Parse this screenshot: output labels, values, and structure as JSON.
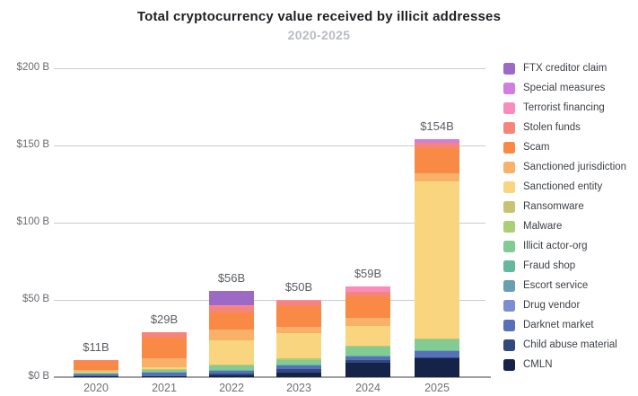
{
  "header": {
    "title": "Total cryptocurrency value received by illicit addresses",
    "subtitle": "2020-2025"
  },
  "chart_data": {
    "type": "bar",
    "stacked": true,
    "title": "Total cryptocurrency value received by illicit addresses",
    "subtitle": "2020-2025",
    "xlabel": "",
    "ylabel": "",
    "ylim": [
      0,
      200
    ],
    "grid": true,
    "legend_position": "right",
    "categories": [
      "2020",
      "2021",
      "2022",
      "2023",
      "2024",
      "2025"
    ],
    "totals": [
      11,
      29,
      56,
      50,
      59,
      154
    ],
    "total_labels": [
      "$11B",
      "$29B",
      "$56B",
      "$50B",
      "$59B",
      "$154B"
    ],
    "y_ticks": [
      {
        "value": 0,
        "label": "$0 B"
      },
      {
        "value": 50,
        "label": "$50 B"
      },
      {
        "value": 100,
        "label": "$100 B"
      },
      {
        "value": 150,
        "label": "$150 B"
      },
      {
        "value": 200,
        "label": "$200 B"
      }
    ],
    "series": [
      {
        "name": "CMLN",
        "color": "#152349",
        "values": [
          0.3,
          0.4,
          1.0,
          3.0,
          9.5,
          12.0
        ]
      },
      {
        "name": "Child abuse material",
        "color": "#31497f",
        "values": [
          0.2,
          0.2,
          1.5,
          2.5,
          1.5,
          1.0
        ]
      },
      {
        "name": "Darknet market",
        "color": "#5671ba",
        "values": [
          1.4,
          2.2,
          1.5,
          2.0,
          2.3,
          3.8
        ]
      },
      {
        "name": "Drug vendor",
        "color": "#7b8ed2",
        "values": [
          0.1,
          0.2,
          0.2,
          0.2,
          0.2,
          0.2
        ]
      },
      {
        "name": "Escort service",
        "color": "#699fb0",
        "values": [
          0.1,
          0.1,
          0.1,
          0.1,
          0.1,
          0.1
        ]
      },
      {
        "name": "Fraud shop",
        "color": "#65b79e",
        "values": [
          0.2,
          0.3,
          0.3,
          0.2,
          0.2,
          0.3
        ]
      },
      {
        "name": "Illicit actor-org",
        "color": "#82cb92",
        "values": [
          0.4,
          1.2,
          2.8,
          3.2,
          5.7,
          7.0
        ]
      },
      {
        "name": "Malware",
        "color": "#a8d077",
        "values": [
          0.1,
          0.2,
          0.2,
          0.2,
          0.2,
          0.1
        ]
      },
      {
        "name": "Ransomware",
        "color": "#c6c472",
        "values": [
          0.2,
          0.4,
          0.5,
          0.6,
          0.5,
          0.5
        ]
      },
      {
        "name": "Sanctioned entity",
        "color": "#f8d57e",
        "values": [
          0.7,
          1.2,
          16.0,
          16.5,
          13.0,
          102.0
        ]
      },
      {
        "name": "Sanctioned jurisdiction",
        "color": "#f9b169",
        "values": [
          0.9,
          6.0,
          6.5,
          4.0,
          5.3,
          5.0
        ]
      },
      {
        "name": "Scam",
        "color": "#f98a45",
        "values": [
          6.1,
          13.0,
          11.0,
          13.5,
          14.0,
          16.0
        ]
      },
      {
        "name": "Stolen funds",
        "color": "#f5857a",
        "values": [
          0.3,
          3.5,
          4.5,
          3.5,
          3.0,
          4.0
        ]
      },
      {
        "name": "Terrorist financing",
        "color": "#f98cbb",
        "values": [
          0.0,
          0.1,
          0.2,
          0.5,
          3.5,
          0.0
        ]
      },
      {
        "name": "Special measures",
        "color": "#cf7fdd",
        "values": [
          0.0,
          0.0,
          0.0,
          0.0,
          0.0,
          2.0
        ]
      },
      {
        "name": "FTX creditor claim",
        "color": "#9c69c5",
        "values": [
          0.0,
          0.0,
          9.7,
          0.0,
          0.0,
          0.0
        ]
      }
    ]
  }
}
